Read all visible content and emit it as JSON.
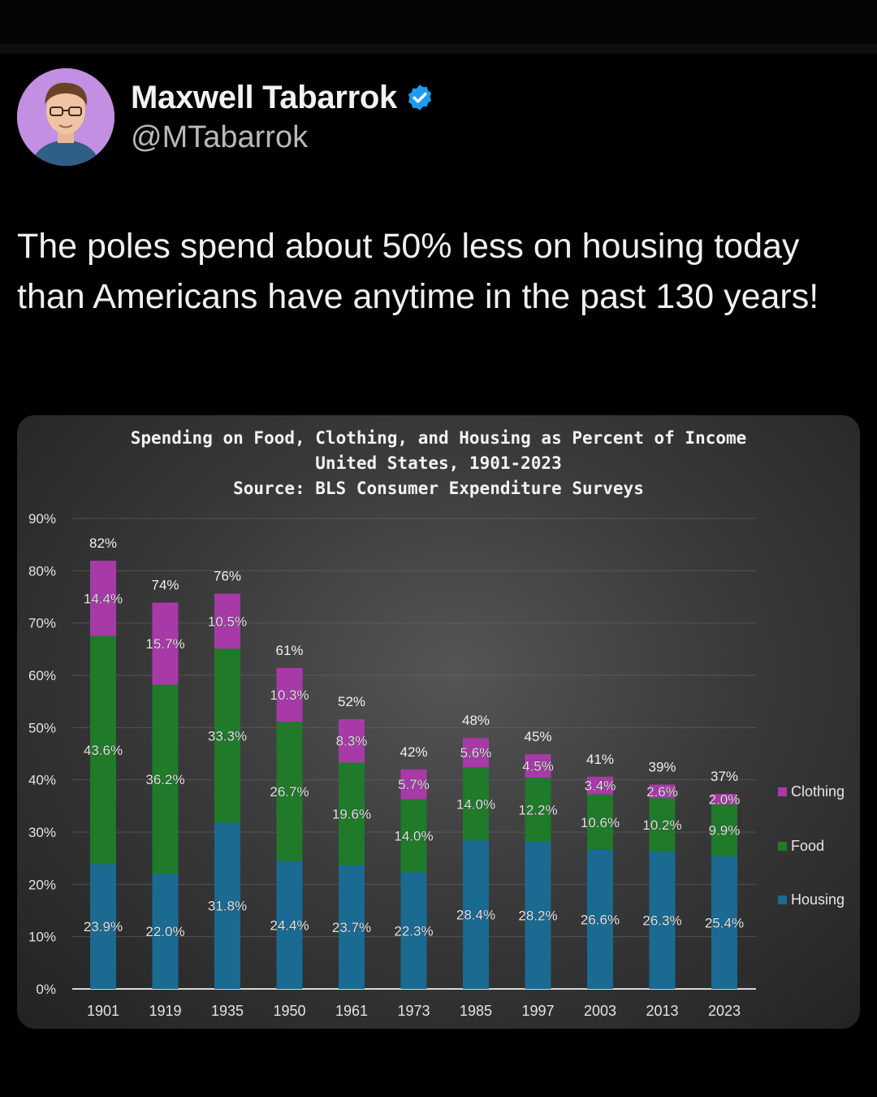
{
  "tweet": {
    "author_name": "Maxwell Tabarrok",
    "author_handle": "@MTabarrok",
    "text": "The poles spend about 50% less on housing today than Americans have anytime in the past 130 years!"
  },
  "colors": {
    "clothing": "#a83aa8",
    "food": "#1f7a2a",
    "housing": "#1a6a92",
    "verified": "#1d9bf0"
  },
  "chart_data": {
    "type": "bar",
    "stacked": true,
    "title": "Spending on Food, Clothing, and Housing as Percent of Income",
    "subtitle": "United States, 1901-2023",
    "source": "Source: BLS Consumer Expenditure Surveys",
    "categories": [
      "1901",
      "1919",
      "1935",
      "1950",
      "1961",
      "1973",
      "1985",
      "1997",
      "2003",
      "2013",
      "2023"
    ],
    "series": [
      {
        "name": "Housing",
        "values": [
          23.9,
          22.0,
          31.8,
          24.4,
          23.7,
          22.3,
          28.4,
          28.2,
          26.6,
          26.3,
          25.4
        ],
        "labels": [
          "23.9%",
          "22.0%",
          "31.8%",
          "24.4%",
          "23.7%",
          "22.3%",
          "28.4%",
          "28.2%",
          "26.6%",
          "26.3%",
          "25.4%"
        ]
      },
      {
        "name": "Food",
        "values": [
          43.6,
          36.2,
          33.3,
          26.7,
          19.6,
          14.0,
          14.0,
          12.2,
          10.6,
          10.2,
          9.9
        ],
        "labels": [
          "43.6%",
          "36.2%",
          "33.3%",
          "26.7%",
          "19.6%",
          "14.0%",
          "14.0%",
          "12.2%",
          "10.6%",
          "10.2%",
          "9.9%"
        ]
      },
      {
        "name": "Clothing",
        "values": [
          14.4,
          15.7,
          10.5,
          10.3,
          8.3,
          5.7,
          5.6,
          4.5,
          3.4,
          2.6,
          2.0
        ],
        "labels": [
          "14.4%",
          "15.7%",
          "10.5%",
          "10.3%",
          "8.3%",
          "5.7%",
          "5.6%",
          "4.5%",
          "3.4%",
          "2.6%",
          "2.0%"
        ]
      }
    ],
    "totals": [
      "82%",
      "74%",
      "76%",
      "61%",
      "52%",
      "42%",
      "48%",
      "45%",
      "41%",
      "39%",
      "37%"
    ],
    "yticks": [
      "0%",
      "10%",
      "20%",
      "30%",
      "40%",
      "50%",
      "60%",
      "70%",
      "80%",
      "90%"
    ],
    "ylim": [
      0,
      90
    ],
    "legend": [
      "Clothing",
      "Food",
      "Housing"
    ],
    "legend_position": "right",
    "grid": true
  }
}
